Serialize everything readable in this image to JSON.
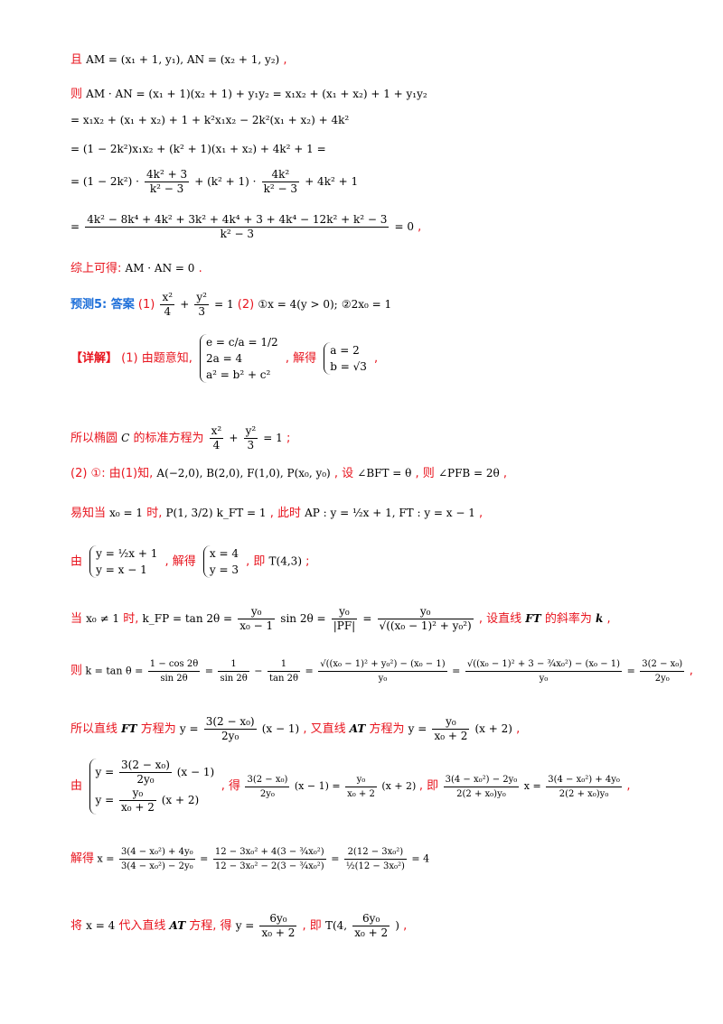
{
  "l1": {
    "pre": "且",
    "math": "AM = (x₁ + 1, y₁), AN = (x₂ + 1, y₂)",
    "post": ","
  },
  "l2": {
    "pre": "则",
    "math": "AM · AN = (x₁ + 1)(x₂ + 1) + y₁y₂ = x₁x₂ + (x₁ + x₂) + 1 + y₁y₂"
  },
  "l3": {
    "math": "= x₁x₂ + (x₁ + x₂) + 1 + k²x₁x₂ − 2k²(x₁ + x₂) + 4k²"
  },
  "l4": {
    "math": "= (1 − 2k²)x₁x₂ + (k² + 1)(x₁ + x₂) + 4k² + 1 ="
  },
  "l5": {
    "a": "= (1 − 2k²) ·",
    "n1": "4k² + 3",
    "d1": "k² − 3",
    "b": "+ (k² + 1) ·",
    "n2": "4k²",
    "d2": "k² − 3",
    "c": "+ 4k² + 1"
  },
  "l6": {
    "a": "=",
    "n": "4k² − 8k⁴ + 4k² + 3k² + 4k⁴ + 3 + 4k⁴ − 12k² + k² − 3",
    "d": "k² − 3",
    "b": "= 0",
    "post": ","
  },
  "l7": {
    "pre": "综上可得:",
    "math": "AM · AN = 0",
    "post": "."
  },
  "l8": {
    "label": "预测5: 答案",
    "p1": "(1)",
    "n1": "x²",
    "d1": "4",
    "plus": "+",
    "n2": "y²",
    "d2": "3",
    "eq": "= 1",
    "p2": "(2)",
    "ans1": "①x = 4(y > 0);",
    "ans2": "②2x₀ = 1"
  },
  "l9": {
    "tag": "【详解】",
    "text": "(1) 由题意知,",
    "s1": "e = c/a = 1/2",
    "s2": "2a = 4",
    "s3": "a² = b² + c²",
    "mid": ", 解得",
    "r1": "a = 2",
    "r2": "b = √3",
    "post": ","
  },
  "l10": {
    "pre": "所以椭圆",
    "C": "C",
    "mid": "的标准方程为",
    "n1": "x²",
    "d1": "4",
    "plus": "+",
    "n2": "y²",
    "d2": "3",
    "eq": "= 1",
    "post": ";"
  },
  "l11": {
    "pre": "(2) ①: 由(1)知,",
    "math": "A(−2,0), B(2,0), F(1,0), P(x₀, y₀)",
    "mid": ", 设",
    "m2": "∠BFT = θ",
    "mid2": ", 则",
    "m3": "∠PFB = 2θ",
    "post": ","
  },
  "l12": {
    "pre": "易知当",
    "m1": "x₀ = 1",
    "mid": "时,",
    "m2": "P(1, 3/2)",
    "m3": "k_FT = 1",
    "mid2": ", 此时",
    "m4": "AP : y = ½x + 1, FT : y = x − 1",
    "post": ","
  },
  "l13": {
    "pre": "由",
    "s1": "y = ½x + 1",
    "s2": "y = x − 1",
    "mid": ", 解得",
    "r1": "x = 4",
    "r2": "y = 3",
    "mid2": ", 即",
    "m": "T(4,3)",
    "post": ";"
  },
  "l14": {
    "pre": "当",
    "m1": "x₀ ≠ 1",
    "mid": "时,",
    "m2": "k_FP = tan 2θ =",
    "n": "y₀",
    "d": "x₀ − 1",
    "m3": "sin 2θ =",
    "n2": "y₀",
    "d2": "|PF|",
    "eq": "=",
    "n3": "y₀",
    "d3": "√((x₀ − 1)² + y₀²)",
    "mid2": ", 设直线",
    "FT": "FT",
    "mid3": "的斜率为",
    "k": "k",
    "post": ","
  },
  "l15": {
    "pre": "则",
    "a": "k = tan θ =",
    "n1": "1 − cos 2θ",
    "d1": "sin 2θ",
    "e1": "=",
    "n2": "1",
    "d2": "sin 2θ",
    "minus": "−",
    "n3": "1",
    "d3": "tan 2θ",
    "e2": "=",
    "n4": "√((x₀ − 1)² + y₀²) − (x₀ − 1)",
    "d4": "y₀",
    "e3": "=",
    "n5": "√((x₀ − 1)² + 3 − ¾x₀²) − (x₀ − 1)",
    "d5": "y₀",
    "e4": "=",
    "n6": "3(2 − x₀)",
    "d6": "2y₀",
    "post": ","
  },
  "l16": {
    "pre": "所以直线",
    "FT": "FT",
    "mid": "方程为",
    "a": "y =",
    "n1": "3(2 − x₀)",
    "d1": "2y₀",
    "b": "(x − 1)",
    "mid2": ", 又直线",
    "AT": "AT",
    "mid3": "方程为",
    "c": "y =",
    "n2": "y₀",
    "d2": "x₀ + 2",
    "d": "(x + 2)",
    "post": ","
  },
  "l17": {
    "pre": "由",
    "s1a": "y =",
    "s1n": "3(2 − x₀)",
    "s1d": "2y₀",
    "s1b": "(x − 1)",
    "s2a": "y =",
    "s2n": "y₀",
    "s2d": "x₀ + 2",
    "s2b": "(x + 2)",
    "mid": ", 得",
    "n1": "3(2 − x₀)",
    "d1": "2y₀",
    "b": "(x − 1) =",
    "n2": "y₀",
    "d2": "x₀ + 2",
    "c": "(x + 2)",
    "mid2": ", 即",
    "n3": "3(4 − x₀²) − 2y₀",
    "d3": "2(2 + x₀)y₀",
    "x": "x =",
    "n4": "3(4 − x₀²) + 4y₀",
    "d4": "2(2 + x₀)y₀",
    "post": ","
  },
  "l18": {
    "pre": "解得",
    "a": "x =",
    "n1": "3(4 − x₀²) + 4y₀",
    "d1": "3(4 − x₀²) − 2y₀",
    "e1": "=",
    "n2": "12 − 3x₀² + 4(3 − ¾x₀²)",
    "d2": "12 − 3x₀² − 2(3 − ¾x₀²)",
    "e2": "=",
    "n3": "2(12 − 3x₀²)",
    "d3": "½(12 − 3x₀²)",
    "e3": "= 4"
  },
  "l19": {
    "pre": "将",
    "m1": "x = 4",
    "mid": "代入直线",
    "AT": "AT",
    "mid2": "方程, 得",
    "a": "y =",
    "n1": "6y₀",
    "d1": "x₀ + 2",
    "mid3": ", 即",
    "b": "T(4,",
    "n2": "6y₀",
    "d2": "x₀ + 2",
    "c": ")",
    "post": ","
  }
}
